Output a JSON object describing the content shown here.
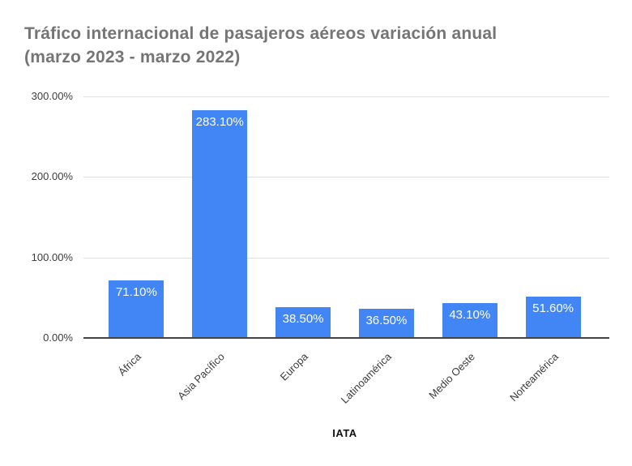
{
  "chart_data": {
    "type": "bar",
    "title": "Tráfico internacional de pasajeros aéreos variación anual (marzo 2023 - marzo 2022)",
    "title_lines": [
      "Tráfico internacional de pasajeros aéreos variación anual",
      "(marzo 2023 - marzo 2022)"
    ],
    "xlabel": "IATA",
    "ylabel": "",
    "categories": [
      "África",
      "Asia Pacífico",
      "Europa",
      "Latinoamérica",
      "Medio Oeste",
      "Norteamérica"
    ],
    "values": [
      71.1,
      283.1,
      38.5,
      36.5,
      43.1,
      51.6
    ],
    "value_labels": [
      "71.10%",
      "283.10%",
      "38.50%",
      "36.50%",
      "43.10%",
      "51.60%"
    ],
    "ylim": [
      0,
      300
    ],
    "ytick_values": [
      0,
      100,
      200,
      300
    ],
    "ytick_labels": [
      "0.00%",
      "100.00%",
      "200.00%",
      "300.00%"
    ],
    "grid": true,
    "legend_position": "none",
    "colors": {
      "bar": "#4285f4",
      "bar_label": "#ffffff",
      "title": "#757575",
      "axis_text": "#3c3c3c",
      "x_axis_title": "#111111",
      "gridline": "#e0e0e0",
      "baseline": "#424242",
      "background": "#ffffff"
    }
  }
}
